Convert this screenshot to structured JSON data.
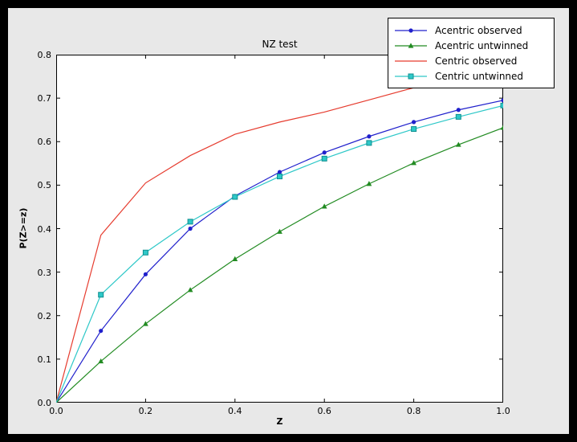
{
  "window": {
    "outer_background": "#000000",
    "figure_background": "#e8e8e8",
    "plot_background": "#ffffff"
  },
  "chart_data": {
    "type": "line",
    "title": "NZ test",
    "xlabel": "Z",
    "ylabel": "P(Z>=z)",
    "xlim": [
      0.0,
      1.0
    ],
    "ylim": [
      0.0,
      0.8
    ],
    "grid": false,
    "legend_position": "upper right",
    "x_ticks": [
      {
        "value": 0.0,
        "label": "0.0"
      },
      {
        "value": 0.2,
        "label": "0.2"
      },
      {
        "value": 0.4,
        "label": "0.4"
      },
      {
        "value": 0.6,
        "label": "0.6"
      },
      {
        "value": 0.8,
        "label": "0.8"
      },
      {
        "value": 1.0,
        "label": "1.0"
      }
    ],
    "y_ticks": [
      {
        "value": 0.0,
        "label": "0.0"
      },
      {
        "value": 0.1,
        "label": "0.1"
      },
      {
        "value": 0.2,
        "label": "0.2"
      },
      {
        "value": 0.3,
        "label": "0.3"
      },
      {
        "value": 0.4,
        "label": "0.4"
      },
      {
        "value": 0.5,
        "label": "0.5"
      },
      {
        "value": 0.6,
        "label": "0.6"
      },
      {
        "value": 0.7,
        "label": "0.7"
      },
      {
        "value": 0.8,
        "label": "0.8"
      }
    ],
    "x": [
      0.0,
      0.1,
      0.2,
      0.3,
      0.4,
      0.5,
      0.6,
      0.7,
      0.8,
      0.9,
      1.0
    ],
    "series": [
      {
        "name": "Acentric observed",
        "color": "#2020cc",
        "marker": "circle",
        "values": [
          0.0,
          0.165,
          0.295,
          0.4,
          0.475,
          0.53,
          0.575,
          0.612,
          0.645,
          0.673,
          0.695
        ]
      },
      {
        "name": "Acentric untwinned",
        "color": "#228b22",
        "marker": "triangle",
        "values": [
          0.0,
          0.095,
          0.181,
          0.259,
          0.33,
          0.393,
          0.451,
          0.503,
          0.551,
          0.593,
          0.632
        ]
      },
      {
        "name": "Centric observed",
        "color": "#e63c2f",
        "marker": "none",
        "values": [
          0.0,
          0.385,
          0.505,
          0.568,
          0.617,
          0.645,
          0.668,
          0.696,
          0.724,
          0.746,
          0.762
        ]
      },
      {
        "name": "Centric untwinned",
        "color": "#2ec8c8",
        "marker": "square",
        "marker_edge": "#0f8f8f",
        "values": [
          0.0,
          0.248,
          0.345,
          0.416,
          0.473,
          0.52,
          0.561,
          0.597,
          0.629,
          0.657,
          0.683
        ]
      }
    ]
  }
}
